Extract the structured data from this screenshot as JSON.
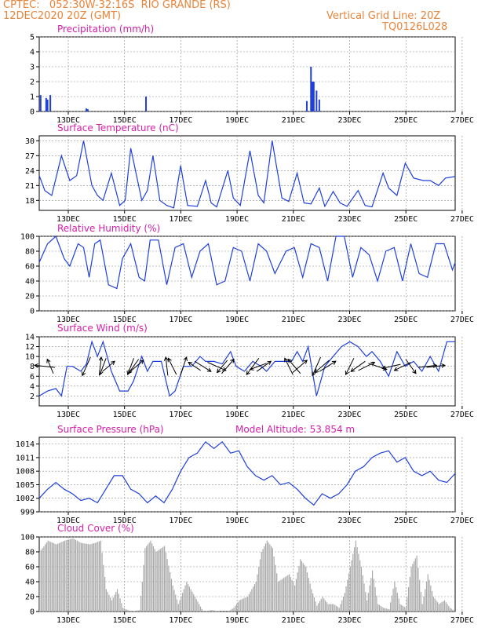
{
  "header": {
    "line1_left": "CPTEC:   052:30W-32:16S  RIO GRANDE (RS)",
    "line2_left": "12DEC2020 20Z (GMT)",
    "line1_right": "Vertical Grid Line: 20Z",
    "line2_right": "TQ0126L028"
  },
  "colors": {
    "line": "#1f3fdc",
    "bar": "#1f3fdc",
    "cloud": "#a9a9a9",
    "title": "#d41fa8",
    "header": "#e8843a",
    "arrow": "#000000"
  },
  "x_ticks": [
    "13DEC",
    "15DEC",
    "17DEC",
    "19DEC",
    "21DEC",
    "23DEC",
    "25DEC",
    "27DEC"
  ],
  "chart_data": [
    {
      "id": "precip",
      "type": "bar",
      "title": "Precipitation (mm/h)",
      "ylim": [
        0,
        5
      ],
      "yticks": [
        "0",
        "1",
        "2",
        "3",
        "4",
        "5"
      ],
      "x": [
        0.05,
        0.25,
        0.3,
        0.4,
        1.7,
        1.75,
        3.85,
        9.65,
        9.8,
        9.85,
        9.9,
        10.0,
        10.1
      ],
      "values": [
        1.1,
        0.9,
        0.8,
        1.1,
        0.2,
        0.15,
        1.0,
        0.7,
        3.0,
        2.0,
        2.0,
        1.4,
        0.8
      ],
      "x_range": [
        0,
        15
      ]
    },
    {
      "id": "temp",
      "type": "line",
      "title": "Surface Temperature (nC)",
      "ylim": [
        16,
        31
      ],
      "yticks": [
        "18",
        "21",
        "24",
        "27",
        "30"
      ],
      "x": [
        0,
        0.2,
        0.45,
        0.8,
        1.1,
        1.35,
        1.6,
        1.9,
        2.1,
        2.3,
        2.6,
        2.9,
        3.1,
        3.3,
        3.7,
        3.9,
        4.1,
        4.35,
        4.6,
        4.85,
        5.1,
        5.35,
        5.7,
        6.0,
        6.2,
        6.4,
        6.8,
        7.0,
        7.25,
        7.6,
        7.9,
        8.1,
        8.4,
        8.75,
        9.0,
        9.3,
        9.55,
        9.8,
        10.1,
        10.3,
        10.6,
        10.85,
        11.1,
        11.5,
        11.75,
        12.0,
        12.4,
        12.6,
        12.9,
        13.2,
        13.5,
        13.85,
        14.1,
        14.4,
        14.65,
        15.0
      ],
      "values": [
        23,
        20,
        19,
        27,
        22,
        23,
        30,
        21,
        19,
        18,
        23.5,
        17,
        18,
        28.5,
        18,
        20,
        27,
        18,
        17,
        16.5,
        25,
        17,
        16.8,
        22,
        17.5,
        16.7,
        24,
        18.5,
        17,
        28,
        19,
        17.5,
        30,
        18.5,
        17.8,
        23.5,
        17.5,
        17.3,
        20.5,
        16.8,
        19.8,
        17.5,
        16.8,
        20,
        17,
        16.7,
        23.5,
        20.5,
        19,
        25.5,
        22.5,
        22,
        22,
        21,
        22.5,
        22.8
      ],
      "x_range": [
        0,
        15
      ]
    },
    {
      "id": "rh",
      "type": "line",
      "title": "Relative Humidity (%)",
      "ylim": [
        0,
        100
      ],
      "yticks": [
        "0",
        "20",
        "40",
        "60",
        "80",
        "100"
      ],
      "x": [
        0,
        0.3,
        0.6,
        0.9,
        1.1,
        1.4,
        1.6,
        1.8,
        2.0,
        2.2,
        2.5,
        2.8,
        3.0,
        3.3,
        3.6,
        3.8,
        4.0,
        4.3,
        4.6,
        4.9,
        5.2,
        5.5,
        5.8,
        6.1,
        6.4,
        6.7,
        7.0,
        7.3,
        7.6,
        7.9,
        8.2,
        8.5,
        8.9,
        9.2,
        9.5,
        9.8,
        10.1,
        10.4,
        10.7,
        11.0,
        11.3,
        11.6,
        11.9,
        12.2,
        12.5,
        12.8,
        13.1,
        13.4,
        13.7,
        14.0,
        14.3,
        14.6,
        14.9,
        15.0
      ],
      "values": [
        65,
        90,
        100,
        70,
        60,
        90,
        85,
        45,
        90,
        95,
        35,
        30,
        70,
        90,
        45,
        40,
        95,
        95,
        35,
        85,
        90,
        45,
        80,
        90,
        35,
        40,
        85,
        80,
        40,
        90,
        80,
        50,
        80,
        85,
        45,
        90,
        85,
        40,
        100,
        100,
        45,
        85,
        75,
        40,
        80,
        85,
        40,
        90,
        50,
        45,
        90,
        90,
        55,
        65
      ],
      "x_range": [
        0,
        15
      ]
    },
    {
      "id": "wind",
      "type": "line",
      "title": "Surface Wind (m/s)",
      "ylim": [
        0,
        14
      ],
      "yticks": [
        "2",
        "4",
        "6",
        "8",
        "10",
        "12",
        "14"
      ],
      "x": [
        0,
        0.3,
        0.6,
        0.8,
        1.0,
        1.2,
        1.5,
        1.7,
        1.9,
        2.1,
        2.3,
        2.6,
        2.9,
        3.2,
        3.4,
        3.7,
        3.9,
        4.1,
        4.4,
        4.7,
        4.9,
        5.2,
        5.5,
        5.8,
        6.0,
        6.3,
        6.6,
        6.9,
        7.1,
        7.4,
        7.7,
        8.0,
        8.2,
        8.5,
        8.8,
        9.1,
        9.3,
        9.5,
        9.7,
        10.0,
        10.3,
        10.6,
        10.9,
        11.2,
        11.5,
        11.8,
        12.0,
        12.3,
        12.6,
        12.9,
        13.2,
        13.5,
        13.8,
        14.1,
        14.4,
        14.7,
        15.0
      ],
      "values": [
        2,
        3,
        3.5,
        2,
        8,
        8,
        7,
        8.5,
        13,
        10,
        13,
        7,
        3,
        3,
        5,
        10,
        7,
        9,
        9,
        2,
        3,
        8,
        8,
        10,
        9,
        9,
        8.5,
        11,
        8,
        7,
        9,
        8,
        7,
        9,
        9,
        9,
        11,
        9,
        12,
        2,
        8,
        10,
        12,
        13,
        12,
        10,
        11,
        9,
        6,
        11,
        8,
        9,
        7,
        10,
        7,
        13,
        13
      ],
      "arrows": [
        {
          "x": 0.2,
          "dir": [
            -1,
            0.1
          ]
        },
        {
          "x": 0.4,
          "dir": [
            -0.3,
            0.7
          ]
        },
        {
          "x": 1.7,
          "dir": [
            -0.4,
            -0.9
          ]
        },
        {
          "x": 2.2,
          "dir": [
            0.1,
            0.9
          ]
        },
        {
          "x": 2.3,
          "dir": [
            -0.3,
            -0.8
          ]
        },
        {
          "x": 2.5,
          "dir": [
            0.6,
            0.5
          ]
        },
        {
          "x": 3.3,
          "dir": [
            -0.3,
            -0.8
          ]
        },
        {
          "x": 3.4,
          "dir": [
            -0.5,
            -0.7
          ]
        },
        {
          "x": 3.5,
          "dir": [
            0.7,
            0.6
          ]
        },
        {
          "x": 4.6,
          "dir": [
            -0.1,
            0.9
          ]
        },
        {
          "x": 4.8,
          "dir": [
            -0.4,
            0.8
          ]
        },
        {
          "x": 5.2,
          "dir": [
            0.3,
            0.9
          ]
        },
        {
          "x": 5.6,
          "dir": [
            -0.6,
            0.4
          ]
        },
        {
          "x": 5.9,
          "dir": [
            0.8,
            -0.5
          ]
        },
        {
          "x": 6.4,
          "dir": [
            0.9,
            -0.4
          ]
        },
        {
          "x": 6.6,
          "dir": [
            -0.5,
            -0.6
          ]
        },
        {
          "x": 6.8,
          "dir": [
            0.6,
            0.7
          ]
        },
        {
          "x": 7.7,
          "dir": [
            -0.6,
            -0.8
          ]
        },
        {
          "x": 7.9,
          "dir": [
            -0.8,
            -0.3
          ]
        },
        {
          "x": 8.1,
          "dir": [
            0.7,
            0.5
          ]
        },
        {
          "x": 9.0,
          "dir": [
            -0.4,
            0.8
          ]
        },
        {
          "x": 9.2,
          "dir": [
            -0.6,
            0.7
          ]
        },
        {
          "x": 9.4,
          "dir": [
            0.7,
            0.6
          ]
        },
        {
          "x": 10.0,
          "dir": [
            -0.4,
            -0.9
          ]
        },
        {
          "x": 10.2,
          "dir": [
            -0.7,
            -0.6
          ]
        },
        {
          "x": 10.4,
          "dir": [
            0.8,
            0.5
          ]
        },
        {
          "x": 11.2,
          "dir": [
            -0.4,
            -0.8
          ]
        },
        {
          "x": 11.5,
          "dir": [
            -0.7,
            -0.5
          ]
        },
        {
          "x": 11.8,
          "dir": [
            0.8,
            0.4
          ]
        },
        {
          "x": 12.2,
          "dir": [
            0.9,
            -0.3
          ]
        },
        {
          "x": 12.7,
          "dir": [
            -0.9,
            -0.2
          ]
        },
        {
          "x": 13.1,
          "dir": [
            -0.8,
            -0.4
          ]
        },
        {
          "x": 13.4,
          "dir": [
            0.5,
            -0.7
          ]
        },
        {
          "x": 14.0,
          "dir": [
            0.9,
            0.1
          ]
        },
        {
          "x": 14.3,
          "dir": [
            0.9,
            0.1
          ]
        }
      ],
      "x_range": [
        0,
        15
      ]
    },
    {
      "id": "press",
      "type": "line",
      "title": "Surface Pressure (hPa)",
      "annotation": "Model Altitude: 53.854 m",
      "ylim": [
        999,
        1015.5
      ],
      "yticks": [
        "999",
        "1002",
        "1005",
        "1008",
        "1011",
        "1014"
      ],
      "x": [
        0,
        0.3,
        0.6,
        0.9,
        1.2,
        1.5,
        1.8,
        2.1,
        2.4,
        2.7,
        3.0,
        3.3,
        3.6,
        3.9,
        4.2,
        4.5,
        4.8,
        5.1,
        5.4,
        5.7,
        6.0,
        6.3,
        6.6,
        6.9,
        7.2,
        7.5,
        7.8,
        8.1,
        8.4,
        8.7,
        9.0,
        9.3,
        9.6,
        9.9,
        10.2,
        10.5,
        10.8,
        11.1,
        11.4,
        11.7,
        12.0,
        12.3,
        12.6,
        12.9,
        13.2,
        13.5,
        13.8,
        14.1,
        14.4,
        14.7,
        15.0
      ],
      "values": [
        1002,
        1004,
        1005.5,
        1004,
        1003,
        1001.5,
        1002,
        1001,
        1004,
        1007,
        1007,
        1004,
        1003,
        1001,
        1002.5,
        1001,
        1004,
        1008,
        1011,
        1012,
        1014.5,
        1013,
        1014.5,
        1012,
        1012.5,
        1009,
        1007,
        1006,
        1007,
        1005,
        1005.5,
        1004,
        1002,
        1000.5,
        1003,
        1002,
        1003,
        1005,
        1008,
        1009,
        1011,
        1012,
        1012.5,
        1010,
        1011,
        1008,
        1007,
        1008,
        1006,
        1005.5,
        1007.5
      ],
      "x_range": [
        0,
        15
      ]
    },
    {
      "id": "cloud",
      "type": "area",
      "title": "Cloud Cover (%)",
      "ylim": [
        0,
        100
      ],
      "yticks": [
        "0",
        "20",
        "40",
        "60",
        "80",
        "100"
      ],
      "x": [
        0,
        0.3,
        0.6,
        0.9,
        1.2,
        1.5,
        1.8,
        2.0,
        2.2,
        2.4,
        2.6,
        2.8,
        3.0,
        3.3,
        3.6,
        3.7,
        3.8,
        4.0,
        4.2,
        4.5,
        4.8,
        5.0,
        5.3,
        5.6,
        5.9,
        6.2,
        6.5,
        6.8,
        7.0,
        7.2,
        7.5,
        7.8,
        8.0,
        8.2,
        8.4,
        8.6,
        8.8,
        9.0,
        9.2,
        9.4,
        9.6,
        9.8,
        10.0,
        10.2,
        10.4,
        10.6,
        10.8,
        11.0,
        11.2,
        11.4,
        11.6,
        11.8,
        12.0,
        12.2,
        12.4,
        12.6,
        12.8,
        13.0,
        13.2,
        13.4,
        13.6,
        13.8,
        14.0,
        14.2,
        14.4,
        14.6,
        14.8,
        15.0
      ],
      "values": [
        80,
        95,
        90,
        95,
        98,
        92,
        90,
        92,
        95,
        30,
        15,
        30,
        5,
        0,
        2,
        40,
        85,
        95,
        80,
        88,
        35,
        10,
        40,
        20,
        0,
        2,
        0,
        0,
        5,
        15,
        20,
        40,
        80,
        95,
        85,
        40,
        45,
        50,
        35,
        70,
        60,
        30,
        8,
        20,
        10,
        10,
        5,
        25,
        60,
        95,
        60,
        15,
        55,
        10,
        5,
        3,
        40,
        10,
        5,
        60,
        75,
        10,
        50,
        20,
        10,
        15,
        5,
        0
      ],
      "x_range": [
        0,
        15
      ]
    }
  ]
}
